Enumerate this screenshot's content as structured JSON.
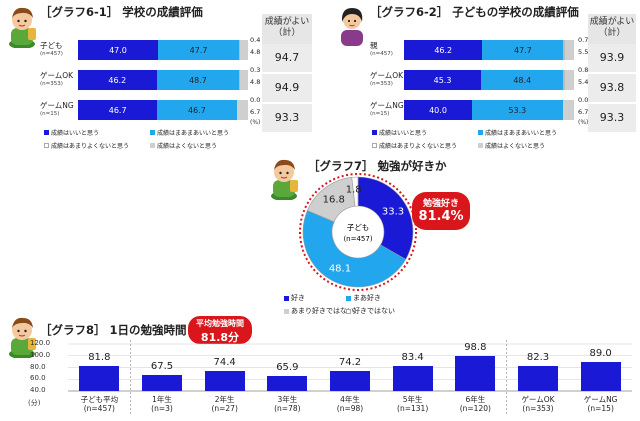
{
  "panel61": {
    "title": "［グラフ6-1］ 学校の成績評価",
    "sum_header": "成績がよい（計）",
    "unit": "(%)",
    "rows": [
      {
        "label": "子ども",
        "n": "(n=457)",
        "v1": 47.0,
        "v2": 47.7,
        "v3": 0.4,
        "v4": 4.8,
        "v1s": "47.0",
        "v2s": "47.7",
        "v3s": "0.4",
        "v4s": "4.8",
        "sum": "94.7"
      },
      {
        "label": "ゲームOK",
        "n": "(n=353)",
        "v1": 46.2,
        "v2": 48.7,
        "v3": 0.3,
        "v4": 4.8,
        "v1s": "46.2",
        "v2s": "48.7",
        "v3s": "0.3",
        "v4s": "4.8",
        "sum": "94.9"
      },
      {
        "label": "ゲームNG",
        "n": "(n=15)",
        "v1": 46.7,
        "v2": 46.7,
        "v3": 0.0,
        "v4": 6.7,
        "v1s": "46.7",
        "v2s": "46.7",
        "v3s": "0.0",
        "v4s": "6.7",
        "sum": "93.3"
      }
    ],
    "legend": [
      "成績はいいと思う",
      "成績はまあまあいいと思う",
      "成績はあまりよくないと思う",
      "成績はよくないと思う"
    ]
  },
  "panel62": {
    "title": "［グラフ6-2］ 子どもの学校の成績評価",
    "sum_header": "成績がよい（計）",
    "unit": "(%)",
    "rows": [
      {
        "label": "親",
        "n": "(n=457)",
        "v1": 46.2,
        "v2": 47.7,
        "v3": 0.7,
        "v4": 5.5,
        "v1s": "46.2",
        "v2s": "47.7",
        "v3s": "0.7",
        "v4s": "5.5",
        "sum": "93.9"
      },
      {
        "label": "ゲームOK",
        "n": "(n=353)",
        "v1": 45.3,
        "v2": 48.4,
        "v3": 0.8,
        "v4": 5.4,
        "v1s": "45.3",
        "v2s": "48.4",
        "v3s": "0.8",
        "v4s": "5.4",
        "sum": "93.8"
      },
      {
        "label": "ゲームNG",
        "n": "(n=15)",
        "v1": 40.0,
        "v2": 53.3,
        "v3": 0.0,
        "v4": 6.7,
        "v1s": "40.0",
        "v2s": "53.3",
        "v3s": "0.0",
        "v4s": "6.7",
        "sum": "93.3"
      }
    ],
    "legend": [
      "成績はいいと思う",
      "成績はまあまあいいと思う",
      "成績はあまりよくないと思う",
      "成績はよくないと思う"
    ]
  },
  "panel7": {
    "title": "［グラフ7］ 勉強が好きか",
    "center_label": "子ども",
    "center_n": "(n=457)",
    "badge_label": "勉強好き",
    "badge_value": "81.4%",
    "legend": [
      "好き",
      "まあ好き",
      "あまり好きではない",
      "好きではない"
    ]
  },
  "panel8": {
    "title": "［グラフ8］ 1日の勉強時間",
    "badge_label": "平均勉強時間",
    "badge_value": "81.8分",
    "unit": "(分)",
    "ticks": [
      "120.0",
      "100.0",
      "80.0",
      "60.0",
      "40.0"
    ]
  },
  "chart_data": [
    {
      "type": "bar",
      "title": "［グラフ6-1］ 学校の成績評価",
      "categories": [
        "子ども (n=457)",
        "ゲームOK (n=353)",
        "ゲームNG (n=15)"
      ],
      "series": [
        {
          "name": "成績はいいと思う",
          "values": [
            47.0,
            46.2,
            46.7
          ]
        },
        {
          "name": "成績はまあまあいいと思う",
          "values": [
            47.7,
            48.7,
            46.7
          ]
        },
        {
          "name": "成績はあまりよくないと思う",
          "values": [
            0.4,
            0.3,
            0.0
          ]
        },
        {
          "name": "成績はよくないと思う",
          "values": [
            4.8,
            4.8,
            6.7
          ]
        }
      ],
      "summary": {
        "name": "成績がよい（計）",
        "values": [
          94.7,
          94.9,
          93.3
        ]
      },
      "stacked": true,
      "orientation": "horizontal"
    },
    {
      "type": "bar",
      "title": "［グラフ6-2］ 子どもの学校の成績評価",
      "categories": [
        "親 (n=457)",
        "ゲームOK (n=353)",
        "ゲームNG (n=15)"
      ],
      "series": [
        {
          "name": "成績はいいと思う",
          "values": [
            46.2,
            45.3,
            40.0
          ]
        },
        {
          "name": "成績はまあまあいいと思う",
          "values": [
            47.7,
            48.4,
            53.3
          ]
        },
        {
          "name": "成績はあまりよくないと思う",
          "values": [
            0.7,
            0.8,
            0.0
          ]
        },
        {
          "name": "成績はよくないと思う",
          "values": [
            5.5,
            5.4,
            6.7
          ]
        }
      ],
      "summary": {
        "name": "成績がよい（計）",
        "values": [
          93.9,
          93.8,
          93.3
        ]
      },
      "stacked": true,
      "orientation": "horizontal"
    },
    {
      "type": "pie",
      "title": "［グラフ7］ 勉強が好きか",
      "categories": [
        "好き",
        "まあ好き",
        "あまり好きではない",
        "好きではない"
      ],
      "values": [
        33.3,
        48.1,
        16.8,
        1.8
      ],
      "value_labels": [
        "33.3",
        "48.1",
        "16.8",
        "1.8"
      ],
      "colors": [
        "#1a1ad6",
        "#22a7ee",
        "#cfcfcf",
        "#ffffff"
      ],
      "donut": true
    },
    {
      "type": "bar",
      "title": "［グラフ8］ 1日の勉強時間",
      "categories": [
        "子ども平均 (n=457)",
        "1年生 (n=3)",
        "2年生 (n=27)",
        "3年生 (n=78)",
        "4年生 (n=98)",
        "5年生 (n=131)",
        "6年生 (n=120)",
        "ゲームOK (n=353)",
        "ゲームNG (n=15)"
      ],
      "values": [
        81.8,
        67.5,
        74.4,
        65.9,
        74.2,
        83.4,
        98.8,
        82.3,
        89.0
      ],
      "value_labels": [
        "81.8",
        "67.5",
        "74.4",
        "65.9",
        "74.2",
        "83.4",
        "98.8",
        "82.3",
        "89.0"
      ],
      "ylabel": "(分)",
      "ylim": [
        40,
        120
      ],
      "yticks": [
        40,
        60,
        80,
        100,
        120
      ],
      "color": "#1a1ad6"
    }
  ]
}
